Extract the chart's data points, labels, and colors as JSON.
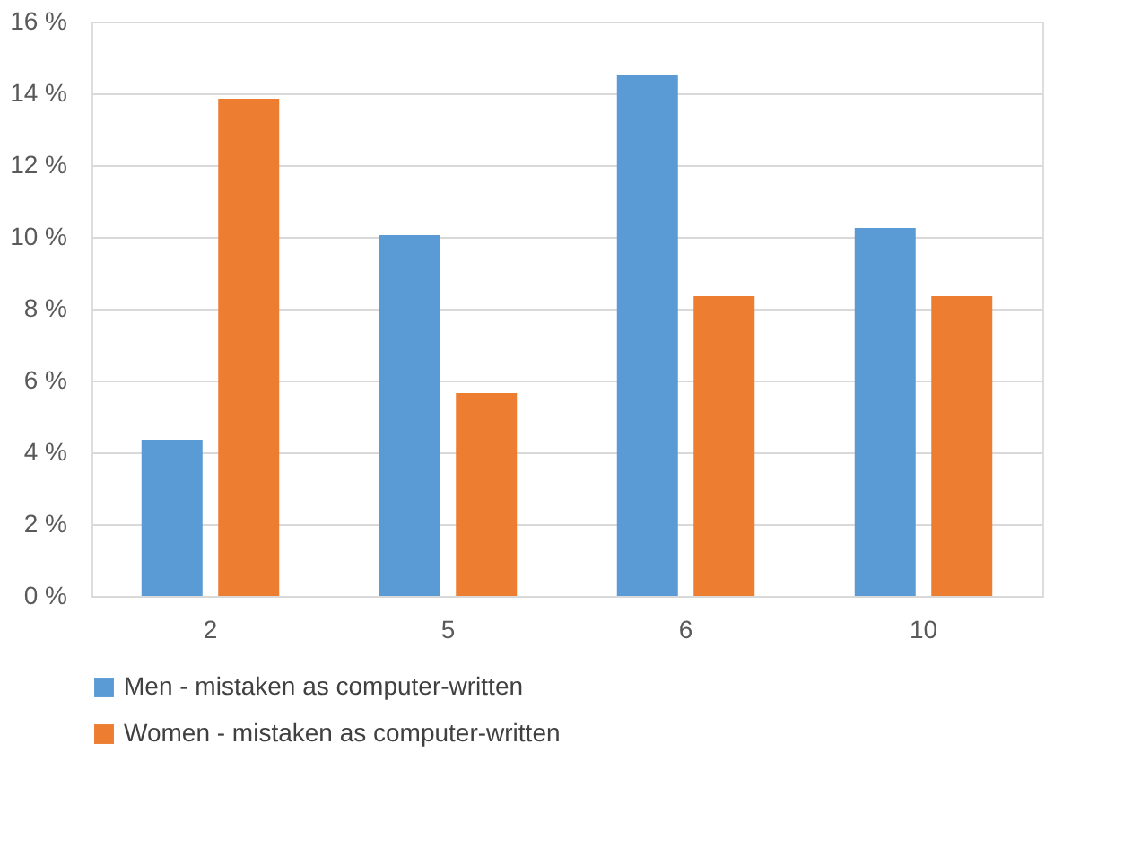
{
  "chart_data": {
    "type": "bar",
    "categories": [
      "2",
      "5",
      "6",
      "10"
    ],
    "series": [
      {
        "name": "Men - mistaken as computer-written",
        "color": "#5b9bd5",
        "values": [
          4.35,
          10.05,
          14.5,
          10.25
        ]
      },
      {
        "name": "Women - mistaken as computer-written",
        "color": "#ed7d31",
        "values": [
          13.85,
          5.65,
          8.35,
          8.35
        ]
      }
    ],
    "ylim": [
      0,
      16
    ],
    "yticks": [
      {
        "value": 0,
        "label": "0 %"
      },
      {
        "value": 2,
        "label": "2 %"
      },
      {
        "value": 4,
        "label": "4 %"
      },
      {
        "value": 6,
        "label": "6 %"
      },
      {
        "value": 8,
        "label": "8 %"
      },
      {
        "value": 10,
        "label": "10 %"
      },
      {
        "value": 12,
        "label": "12 %"
      },
      {
        "value": 14,
        "label": "14 %"
      },
      {
        "value": 16,
        "label": "16 %"
      }
    ],
    "grid": "y",
    "legend": "bottom"
  }
}
